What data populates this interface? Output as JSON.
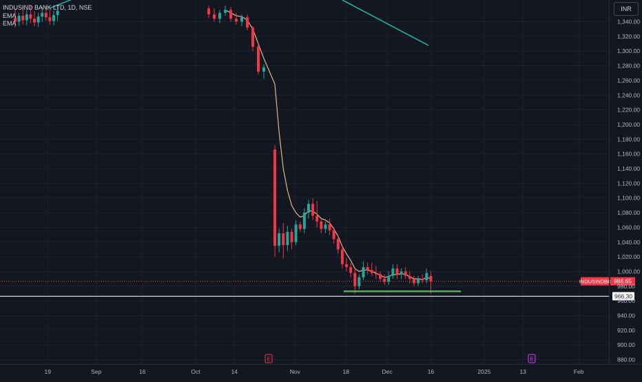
{
  "header": {
    "symbol_line": "INDUSIND BANK LTD, 1D, NSE",
    "indicators": [
      "EMA",
      "EMA"
    ]
  },
  "currency_button": "INR",
  "chart_data": {
    "type": "candlestick",
    "title": "INDUSIND BANK LTD, 1D, NSE",
    "yunit": "INR",
    "ylim": [
      872,
      1362
    ],
    "yticks": [
      880,
      900,
      920,
      940,
      960,
      980,
      1000,
      1020,
      1040,
      1060,
      1080,
      1100,
      1120,
      1140,
      1160,
      1180,
      1200,
      1220,
      1240,
      1260,
      1280,
      1300,
      1320,
      1340
    ],
    "xticks": [
      "19",
      "Sep",
      "16",
      "Oct",
      "14",
      "Nov",
      "18",
      "Dec",
      "16",
      "2025",
      "13",
      "Feb"
    ],
    "candles": [
      {
        "o": 1345,
        "h": 1358,
        "l": 1332,
        "c": 1340
      },
      {
        "o": 1340,
        "h": 1352,
        "l": 1334,
        "c": 1348
      },
      {
        "o": 1348,
        "h": 1360,
        "l": 1336,
        "c": 1342
      },
      {
        "o": 1342,
        "h": 1356,
        "l": 1335,
        "c": 1350
      },
      {
        "o": 1350,
        "h": 1362,
        "l": 1338,
        "c": 1344
      },
      {
        "o": 1344,
        "h": 1354,
        "l": 1334,
        "c": 1339
      },
      {
        "o": 1339,
        "h": 1352,
        "l": 1333,
        "c": 1347
      },
      {
        "o": 1347,
        "h": 1360,
        "l": 1340,
        "c": 1352
      },
      {
        "o": 1352,
        "h": 1362,
        "l": 1342,
        "c": 1346
      },
      {
        "o": 1346,
        "h": 1356,
        "l": 1336,
        "c": 1341
      },
      {
        "o": 1341,
        "h": 1355,
        "l": 1335,
        "c": 1349
      },
      {
        "o": 1349,
        "h": 1362,
        "l": 1341,
        "c": 1355
      },
      {
        "o": 1358,
        "h": 1362,
        "l": 1345,
        "c": 1350
      },
      {
        "o": 1350,
        "h": 1358,
        "l": 1340,
        "c": 1344
      },
      {
        "o": 1344,
        "h": 1356,
        "l": 1338,
        "c": 1352
      },
      {
        "o": 1352,
        "h": 1362,
        "l": 1348,
        "c": 1356
      },
      {
        "o": 1356,
        "h": 1360,
        "l": 1340,
        "c": 1344
      },
      {
        "o": 1344,
        "h": 1352,
        "l": 1336,
        "c": 1340
      },
      {
        "o": 1340,
        "h": 1350,
        "l": 1334,
        "c": 1346
      },
      {
        "o": 1346,
        "h": 1350,
        "l": 1328,
        "c": 1332
      },
      {
        "o": 1332,
        "h": 1334,
        "l": 1300,
        "c": 1306
      },
      {
        "o": 1306,
        "h": 1310,
        "l": 1268,
        "c": 1272
      },
      {
        "o": 1272,
        "h": 1282,
        "l": 1262,
        "c": 1278
      },
      {
        "o": 1166,
        "h": 1172,
        "l": 1020,
        "c": 1035
      },
      {
        "o": 1035,
        "h": 1058,
        "l": 1026,
        "c": 1052
      },
      {
        "o": 1052,
        "h": 1066,
        "l": 1018,
        "c": 1036
      },
      {
        "o": 1036,
        "h": 1062,
        "l": 1028,
        "c": 1054
      },
      {
        "o": 1054,
        "h": 1058,
        "l": 1030,
        "c": 1040
      },
      {
        "o": 1040,
        "h": 1070,
        "l": 1036,
        "c": 1064
      },
      {
        "o": 1064,
        "h": 1068,
        "l": 1054,
        "c": 1058
      },
      {
        "o": 1058,
        "h": 1086,
        "l": 1052,
        "c": 1080
      },
      {
        "o": 1080,
        "h": 1098,
        "l": 1072,
        "c": 1092
      },
      {
        "o": 1092,
        "h": 1100,
        "l": 1070,
        "c": 1076
      },
      {
        "o": 1076,
        "h": 1096,
        "l": 1060,
        "c": 1068
      },
      {
        "o": 1068,
        "h": 1072,
        "l": 1052,
        "c": 1058
      },
      {
        "o": 1058,
        "h": 1068,
        "l": 1052,
        "c": 1064
      },
      {
        "o": 1064,
        "h": 1072,
        "l": 1050,
        "c": 1056
      },
      {
        "o": 1056,
        "h": 1060,
        "l": 1038,
        "c": 1044
      },
      {
        "o": 1044,
        "h": 1048,
        "l": 1024,
        "c": 1030
      },
      {
        "o": 1030,
        "h": 1034,
        "l": 1004,
        "c": 1010
      },
      {
        "o": 1010,
        "h": 1018,
        "l": 1000,
        "c": 1006
      },
      {
        "o": 1006,
        "h": 1012,
        "l": 992,
        "c": 998
      },
      {
        "o": 998,
        "h": 1004,
        "l": 970,
        "c": 980
      },
      {
        "o": 980,
        "h": 996,
        "l": 976,
        "c": 992
      },
      {
        "o": 992,
        "h": 1014,
        "l": 988,
        "c": 1006
      },
      {
        "o": 1006,
        "h": 1012,
        "l": 996,
        "c": 1002
      },
      {
        "o": 1002,
        "h": 1012,
        "l": 994,
        "c": 998
      },
      {
        "o": 998,
        "h": 1008,
        "l": 990,
        "c": 996
      },
      {
        "o": 996,
        "h": 1000,
        "l": 986,
        "c": 990
      },
      {
        "o": 990,
        "h": 996,
        "l": 982,
        "c": 986
      },
      {
        "o": 986,
        "h": 1000,
        "l": 982,
        "c": 994
      },
      {
        "o": 994,
        "h": 1010,
        "l": 990,
        "c": 1004
      },
      {
        "o": 1004,
        "h": 1010,
        "l": 990,
        "c": 996
      },
      {
        "o": 996,
        "h": 1004,
        "l": 990,
        "c": 1000
      },
      {
        "o": 1000,
        "h": 1006,
        "l": 990,
        "c": 994
      },
      {
        "o": 994,
        "h": 1000,
        "l": 984,
        "c": 990
      },
      {
        "o": 990,
        "h": 994,
        "l": 980,
        "c": 984
      },
      {
        "o": 984,
        "h": 994,
        "l": 980,
        "c": 990
      },
      {
        "o": 990,
        "h": 996,
        "l": 984,
        "c": 988
      },
      {
        "o": 988,
        "h": 1004,
        "l": 984,
        "c": 998
      },
      {
        "o": 994,
        "h": 1000,
        "l": 970,
        "c": 986.65
      }
    ],
    "ema_fast": [
      {
        "i": 22,
        "v": 1290
      },
      {
        "i": 23,
        "v": 1255
      },
      {
        "i": 24,
        "v": 1190
      },
      {
        "i": 25,
        "v": 1140
      },
      {
        "i": 26,
        "v": 1110
      },
      {
        "i": 27,
        "v": 1090
      },
      {
        "i": 28,
        "v": 1080
      },
      {
        "i": 29,
        "v": 1074
      },
      {
        "i": 30,
        "v": 1076
      },
      {
        "i": 31,
        "v": 1083
      },
      {
        "i": 32,
        "v": 1082
      },
      {
        "i": 33,
        "v": 1078
      },
      {
        "i": 34,
        "v": 1072
      },
      {
        "i": 35,
        "v": 1070
      },
      {
        "i": 36,
        "v": 1066
      },
      {
        "i": 37,
        "v": 1058
      },
      {
        "i": 38,
        "v": 1048
      },
      {
        "i": 39,
        "v": 1034
      },
      {
        "i": 40,
        "v": 1024
      },
      {
        "i": 41,
        "v": 1015
      },
      {
        "i": 42,
        "v": 1004
      },
      {
        "i": 43,
        "v": 1000
      },
      {
        "i": 44,
        "v": 1002
      },
      {
        "i": 45,
        "v": 1002
      },
      {
        "i": 46,
        "v": 1000
      },
      {
        "i": 47,
        "v": 998
      },
      {
        "i": 48,
        "v": 995
      },
      {
        "i": 49,
        "v": 992
      },
      {
        "i": 50,
        "v": 993
      },
      {
        "i": 51,
        "v": 996
      },
      {
        "i": 52,
        "v": 996
      },
      {
        "i": 53,
        "v": 997
      },
      {
        "i": 54,
        "v": 996
      },
      {
        "i": 55,
        "v": 993
      },
      {
        "i": 56,
        "v": 990
      },
      {
        "i": 57,
        "v": 990
      },
      {
        "i": 58,
        "v": 989
      },
      {
        "i": 59,
        "v": 992
      },
      {
        "i": 60,
        "v": 990
      }
    ],
    "ema_slow": [
      {
        "i": 15,
        "v": 1470
      },
      {
        "i": 25,
        "v": 1378
      },
      {
        "i": 40,
        "v": 1308
      }
    ],
    "ema_fast_early": [
      {
        "i": 15,
        "v": 1356
      },
      {
        "i": 16,
        "v": 1352
      },
      {
        "i": 17,
        "v": 1348
      },
      {
        "i": 18,
        "v": 1347
      },
      {
        "i": 19,
        "v": 1342
      },
      {
        "i": 20,
        "v": 1330
      },
      {
        "i": 21,
        "v": 1310
      },
      {
        "i": 22,
        "v": 1290
      }
    ],
    "ema_early_upper_left": [
      {
        "i": -3,
        "v": 1360
      },
      {
        "i": 7,
        "v": 1370
      }
    ],
    "support_line": {
      "from_index": 43,
      "to_index": 67,
      "price": 973
    },
    "horizontal_line": {
      "price": 966.3,
      "label": "966.30"
    },
    "last_price": {
      "symbol": "INDUSINDBK",
      "value": "986.65",
      "price": 986.65
    },
    "events": [
      {
        "label": "E",
        "index": 25
      },
      {
        "label": "E",
        "index": 101
      }
    ]
  }
}
